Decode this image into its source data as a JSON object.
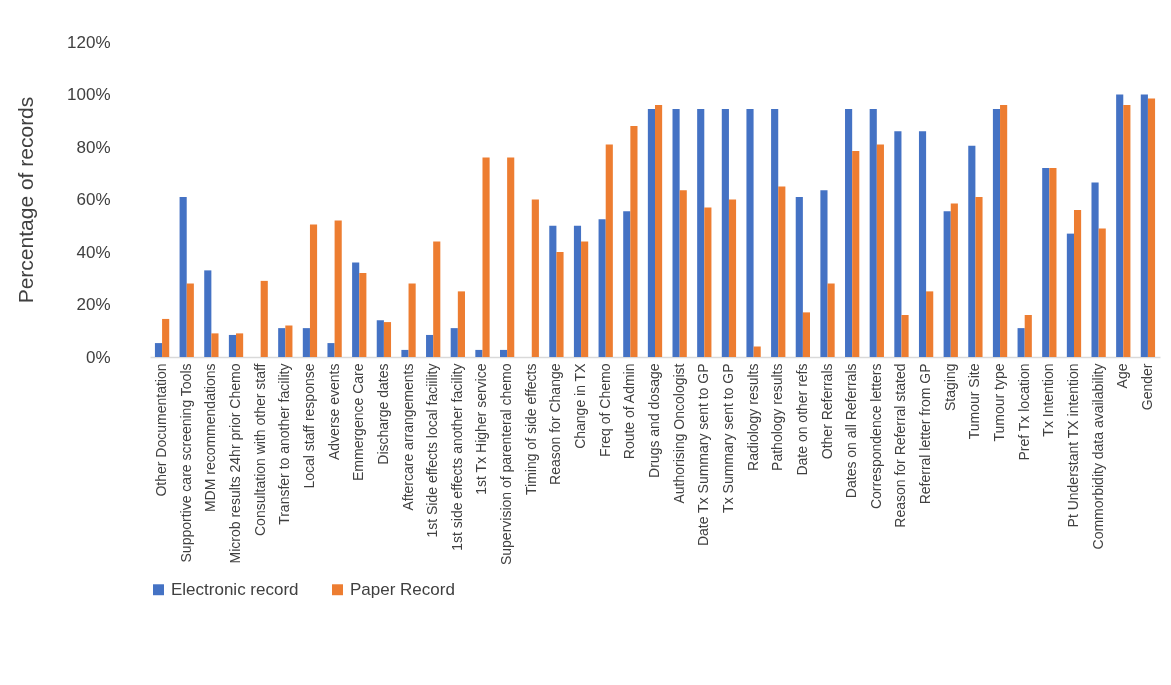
{
  "chart_data": {
    "type": "bar",
    "ylabel": "Percentage of records",
    "categories": [
      "Other Documentation",
      "Supportive care screening Tools",
      "MDM recommendations",
      "Microb results 24hr prior Chemo",
      "Consultation with other staff",
      "Transfer to another facility",
      "Local staff response",
      "Adverse events",
      "Emmergence Care",
      "Discharge dates",
      "Aftercare arrangements",
      "1st Side effects local faciility",
      "1st side effects another facility",
      "1st Tx Higher service",
      "Supervision of parenteral chemo",
      "Timing of side effects",
      "Reason for Change",
      "Change in TX",
      "Freq of Chemo",
      "Route of Admin",
      "Drugs and dosage",
      "Authorising Oncologist",
      "Date Tx Summary sent to GP",
      "Tx Summary sent to GP",
      "Radiology results",
      "Pathology results",
      "Date on other refs",
      "Other Referrals",
      "Dates on all Referrals",
      "Correspondence letters",
      "Reason for Referral stated",
      "Referral letter from GP",
      "Staging",
      "Tumour Site",
      "Tumour type",
      "Pref Tx location",
      "Tx Intention",
      "Pt Understant TX intention",
      "Commorbidity data availability",
      "Age",
      "Gender"
    ],
    "series": [
      {
        "name": "Electronic record",
        "color": "#4472c4",
        "values": [
          5.3,
          61,
          33,
          8.4,
          0,
          11,
          11,
          5.3,
          36,
          14,
          2.7,
          8.4,
          11,
          2.7,
          2.7,
          0,
          50,
          50,
          52.5,
          55.5,
          94.5,
          94.5,
          94.5,
          94.5,
          94.5,
          94.5,
          61,
          63.5,
          94.5,
          94.5,
          86,
          86,
          55.5,
          80.5,
          94.5,
          11,
          72,
          47,
          66.5,
          100,
          100
        ]
      },
      {
        "name": "Paper Record",
        "color": "#ed7d31",
        "values": [
          14.5,
          28,
          9,
          9,
          29,
          12,
          50.5,
          52,
          32,
          13.3,
          28,
          44,
          25,
          76,
          76,
          60,
          40,
          44,
          81,
          88,
          96,
          63.5,
          57,
          60,
          4,
          65,
          17,
          28,
          78.5,
          81,
          16,
          25,
          58.5,
          61,
          96,
          16,
          72,
          56,
          49,
          96,
          98.5
        ]
      }
    ],
    "ylim": [
      0,
      120
    ],
    "yticks": [
      {
        "value": 0,
        "label": "0%"
      },
      {
        "value": 20,
        "label": "20%"
      },
      {
        "value": 40,
        "label": "40%"
      },
      {
        "value": 60,
        "label": "60%"
      },
      {
        "value": 80,
        "label": "80%"
      },
      {
        "value": 100,
        "label": "100%"
      },
      {
        "value": 120,
        "label": "120%"
      }
    ],
    "grid": false,
    "legend": "bottom"
  }
}
